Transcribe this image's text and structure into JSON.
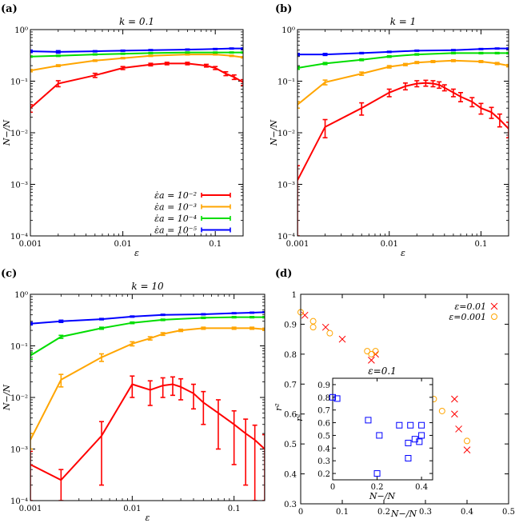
{
  "chart_data": [
    {
      "panel_label": "(a)",
      "type": "line",
      "title": "k = 0.1",
      "xlabel": "ε",
      "ylabel": "N−/N",
      "xscale": "log",
      "yscale": "log",
      "xlim": [
        0.001,
        0.2
      ],
      "ylim": [
        0.0001,
        1
      ],
      "xticks": [
        0.001,
        0.01,
        0.1
      ],
      "xtick_labels": [
        "0.001",
        "0.01",
        "0.1"
      ],
      "yticks": [
        0.0001,
        0.001,
        0.01,
        0.1,
        1
      ],
      "ytick_labels": [
        "10⁻⁴",
        "10⁻³",
        "10⁻²",
        "10⁻¹",
        "10⁰"
      ],
      "legend": {
        "placement": "lower-right",
        "entries": [
          "ε̇a = 10⁻²",
          "ε̇a = 10⁻³",
          "ε̇a = 10⁻⁴",
          "ε̇a = 10⁻⁵"
        ]
      },
      "series": [
        {
          "color": "#ff0000",
          "x": [
            0.001,
            0.002,
            0.005,
            0.01,
            0.02,
            0.03,
            0.05,
            0.08,
            0.1,
            0.13,
            0.16,
            0.2
          ],
          "y": [
            0.03,
            0.09,
            0.13,
            0.18,
            0.21,
            0.22,
            0.22,
            0.2,
            0.18,
            0.14,
            0.12,
            0.095
          ],
          "err": [
            0.005,
            0.012,
            0.012,
            0.012,
            0.012,
            0.012,
            0.012,
            0.012,
            0.012,
            0.012,
            0.012,
            0.012
          ]
        },
        {
          "color": "#ffa500",
          "x": [
            0.001,
            0.002,
            0.005,
            0.01,
            0.02,
            0.05,
            0.1,
            0.15,
            0.2
          ],
          "y": [
            0.16,
            0.2,
            0.25,
            0.28,
            0.31,
            0.33,
            0.33,
            0.31,
            0.29
          ],
          "err": [
            0.008,
            0.008,
            0.008,
            0.008,
            0.008,
            0.008,
            0.008,
            0.008,
            0.008
          ]
        },
        {
          "color": "#00dd00",
          "x": [
            0.001,
            0.002,
            0.005,
            0.01,
            0.02,
            0.05,
            0.1,
            0.15,
            0.2
          ],
          "y": [
            0.3,
            0.31,
            0.33,
            0.34,
            0.35,
            0.36,
            0.36,
            0.36,
            0.36
          ],
          "err": [
            0.008,
            0.008,
            0.008,
            0.008,
            0.008,
            0.008,
            0.008,
            0.008,
            0.008
          ]
        },
        {
          "color": "#0000ff",
          "x": [
            0.001,
            0.002,
            0.005,
            0.01,
            0.02,
            0.05,
            0.1,
            0.15,
            0.2
          ],
          "y": [
            0.38,
            0.37,
            0.38,
            0.39,
            0.4,
            0.41,
            0.42,
            0.43,
            0.43
          ],
          "err": [
            0.02,
            0.02,
            0.01,
            0.01,
            0.01,
            0.01,
            0.01,
            0.01,
            0.01
          ]
        }
      ]
    },
    {
      "panel_label": "(b)",
      "type": "line",
      "title": "k = 1",
      "xlabel": "ε",
      "ylabel": "N−/N",
      "xscale": "log",
      "yscale": "log",
      "xlim": [
        0.001,
        0.2
      ],
      "ylim": [
        0.0001,
        1
      ],
      "xticks": [
        0.001,
        0.01,
        0.1
      ],
      "xtick_labels": [
        "0.001",
        "0.01",
        "0.1"
      ],
      "yticks": [
        0.0001,
        0.001,
        0.01,
        0.1,
        1
      ],
      "ytick_labels": [
        "10⁻⁴",
        "10⁻³",
        "10⁻²",
        "10⁻¹",
        "10⁰"
      ],
      "series": [
        {
          "color": "#ff0000",
          "x": [
            0.001,
            0.002,
            0.005,
            0.01,
            0.015,
            0.02,
            0.025,
            0.03,
            0.035,
            0.04,
            0.05,
            0.06,
            0.08,
            0.1,
            0.13,
            0.16,
            0.2
          ],
          "y": [
            0.0012,
            0.013,
            0.03,
            0.06,
            0.08,
            0.09,
            0.092,
            0.09,
            0.085,
            0.075,
            0.06,
            0.05,
            0.04,
            0.03,
            0.025,
            0.018,
            0.012
          ],
          "err": [
            0.0011,
            0.005,
            0.008,
            0.01,
            0.012,
            0.012,
            0.012,
            0.012,
            0.012,
            0.01,
            0.01,
            0.01,
            0.008,
            0.007,
            0.006,
            0.005,
            0.004
          ]
        },
        {
          "color": "#ffa500",
          "x": [
            0.001,
            0.002,
            0.005,
            0.01,
            0.015,
            0.02,
            0.03,
            0.05,
            0.1,
            0.15,
            0.2
          ],
          "y": [
            0.035,
            0.095,
            0.14,
            0.19,
            0.21,
            0.23,
            0.24,
            0.25,
            0.24,
            0.22,
            0.2
          ],
          "err": [
            0.005,
            0.01,
            0.01,
            0.01,
            0.01,
            0.01,
            0.01,
            0.01,
            0.01,
            0.01,
            0.01
          ]
        },
        {
          "color": "#00dd00",
          "x": [
            0.001,
            0.002,
            0.005,
            0.01,
            0.02,
            0.05,
            0.1,
            0.15,
            0.2
          ],
          "y": [
            0.18,
            0.22,
            0.26,
            0.3,
            0.33,
            0.35,
            0.35,
            0.35,
            0.35
          ],
          "err": [
            0.01,
            0.01,
            0.01,
            0.01,
            0.01,
            0.01,
            0.01,
            0.01,
            0.01
          ]
        },
        {
          "color": "#0000ff",
          "x": [
            0.001,
            0.002,
            0.005,
            0.01,
            0.02,
            0.05,
            0.1,
            0.15,
            0.2
          ],
          "y": [
            0.33,
            0.33,
            0.35,
            0.37,
            0.39,
            0.4,
            0.42,
            0.43,
            0.43
          ],
          "err": [
            0.015,
            0.015,
            0.01,
            0.01,
            0.01,
            0.01,
            0.01,
            0.01,
            0.01
          ]
        }
      ]
    },
    {
      "panel_label": "(c)",
      "type": "line",
      "title": "k = 10",
      "xlabel": "ε",
      "ylabel": "N−/N",
      "xscale": "log",
      "yscale": "log",
      "xlim": [
        0.001,
        0.2
      ],
      "ylim": [
        0.0001,
        1
      ],
      "xticks": [
        0.001,
        0.01,
        0.1
      ],
      "xtick_labels": [
        "0.001",
        "0.01",
        "0.1"
      ],
      "yticks": [
        0.0001,
        0.001,
        0.01,
        0.1,
        1
      ],
      "ytick_labels": [
        "10⁻⁴",
        "10⁻³",
        "10⁻²",
        "10⁻¹",
        "10⁰"
      ],
      "series": [
        {
          "color": "#ff0000",
          "x": [
            0.001,
            0.002,
            0.005,
            0.01,
            0.015,
            0.02,
            0.025,
            0.03,
            0.04,
            0.05,
            0.07,
            0.1,
            0.13,
            0.16,
            0.2
          ],
          "y": [
            0.0005,
            0.00025,
            0.0018,
            0.018,
            0.014,
            0.017,
            0.018,
            0.016,
            0.012,
            0.008,
            0.005,
            0.003,
            0.002,
            0.0015,
            0.001
          ],
          "err": [
            0.0004,
            0.00015,
            0.0016,
            0.008,
            0.007,
            0.007,
            0.007,
            0.007,
            0.006,
            0.005,
            0.004,
            0.0025,
            0.0018,
            0.0014,
            0.0009
          ]
        },
        {
          "color": "#ffa500",
          "x": [
            0.001,
            0.002,
            0.005,
            0.01,
            0.015,
            0.02,
            0.03,
            0.05,
            0.1,
            0.15,
            0.2
          ],
          "y": [
            0.0015,
            0.022,
            0.06,
            0.11,
            0.14,
            0.17,
            0.2,
            0.22,
            0.22,
            0.22,
            0.21
          ],
          "err": [
            0.0005,
            0.006,
            0.01,
            0.01,
            0.01,
            0.01,
            0.01,
            0.01,
            0.01,
            0.01,
            0.01
          ]
        },
        {
          "color": "#00dd00",
          "x": [
            0.001,
            0.002,
            0.005,
            0.01,
            0.02,
            0.05,
            0.1,
            0.15,
            0.2
          ],
          "y": [
            0.065,
            0.15,
            0.22,
            0.28,
            0.32,
            0.35,
            0.36,
            0.36,
            0.36
          ],
          "err": [
            0.01,
            0.01,
            0.01,
            0.01,
            0.01,
            0.01,
            0.01,
            0.01,
            0.01
          ]
        },
        {
          "color": "#0000ff",
          "x": [
            0.001,
            0.002,
            0.005,
            0.01,
            0.02,
            0.05,
            0.1,
            0.15,
            0.2
          ],
          "y": [
            0.27,
            0.3,
            0.33,
            0.37,
            0.4,
            0.41,
            0.43,
            0.44,
            0.45
          ],
          "err": [
            0.015,
            0.015,
            0.01,
            0.01,
            0.01,
            0.01,
            0.01,
            0.01,
            0.01
          ]
        }
      ]
    },
    {
      "panel_label": "(d)",
      "type": "scatter",
      "xlabel": "N−/N",
      "ylabel": "r²",
      "xlim": [
        0,
        0.5
      ],
      "ylim": [
        0.3,
        1
      ],
      "xticks": [
        0,
        0.1,
        0.2,
        0.3,
        0.4,
        0.5
      ],
      "xtick_labels": [
        "0",
        "0.1",
        "0.2",
        "0.3",
        "0.4",
        "0.5"
      ],
      "yticks": [
        0.3,
        0.4,
        0.5,
        0.6,
        0.7,
        0.8,
        0.9,
        1
      ],
      "ytick_labels": [
        "0.3",
        "0.4",
        "0.5",
        "0.6",
        "0.7",
        "0.8",
        "0.9",
        "1"
      ],
      "legend": {
        "placement": "top-right",
        "entries": [
          "ε=0.01",
          "ε=0.001"
        ]
      },
      "series": [
        {
          "marker": "x",
          "color": "#ff0000",
          "x": [
            0.01,
            0.06,
            0.1,
            0.17,
            0.18,
            0.3,
            0.31,
            0.37,
            0.37,
            0.38,
            0.4
          ],
          "y": [
            0.93,
            0.89,
            0.85,
            0.78,
            0.8,
            0.65,
            0.6,
            0.65,
            0.6,
            0.55,
            0.48
          ]
        },
        {
          "marker": "o",
          "color": "#ffa500",
          "x": [
            0.0,
            0.03,
            0.03,
            0.07,
            0.16,
            0.17,
            0.18,
            0.27,
            0.28,
            0.29,
            0.32,
            0.34,
            0.4
          ],
          "y": [
            0.94,
            0.91,
            0.89,
            0.87,
            0.81,
            0.8,
            0.81,
            0.68,
            0.71,
            0.63,
            0.65,
            0.61,
            0.51
          ]
        }
      ],
      "inset": {
        "title": "ε=0.1",
        "xlabel": "N−/N",
        "ylabel": "r²",
        "xlim": [
          0,
          0.45
        ],
        "ylim": [
          0.15,
          0.95
        ],
        "xticks": [
          0,
          0.2,
          0.4
        ],
        "xtick_labels": [
          "0",
          "0.2",
          "0.4"
        ],
        "yticks": [
          0.2,
          0.3,
          0.4,
          0.5,
          0.6,
          0.7,
          0.8,
          0.9
        ],
        "ytick_labels": [
          "0.2",
          "0.3",
          "0.4",
          "0.5",
          "0.6",
          "0.7",
          "0.8",
          "0.9"
        ],
        "series": [
          {
            "marker": "square",
            "color": "#0000ff",
            "x": [
              0.0,
              0.02,
              0.16,
              0.2,
              0.21,
              0.3,
              0.34,
              0.34,
              0.35,
              0.37,
              0.39,
              0.4,
              0.4
            ],
            "y": [
              0.8,
              0.79,
              0.62,
              0.2,
              0.5,
              0.58,
              0.44,
              0.32,
              0.58,
              0.47,
              0.45,
              0.58,
              0.5
            ]
          }
        ]
      }
    }
  ]
}
